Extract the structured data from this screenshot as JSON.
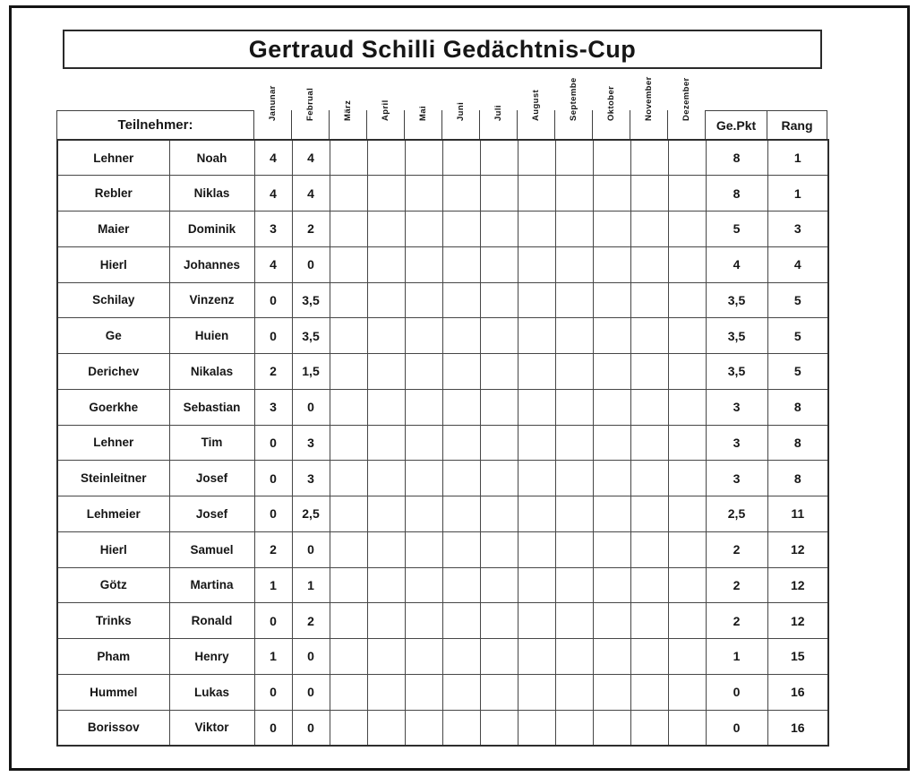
{
  "title": "Gertraud Schilli Gedächtnis-Cup",
  "header": {
    "teilnehmer_label": "Teilnehmer:",
    "months": [
      "Janunar",
      "Februal",
      "März",
      "April",
      "Mai",
      "Juni",
      "Juli",
      "August",
      "Septembe",
      "Oktober",
      "November",
      "Dezember"
    ],
    "gepkt_label": "Ge.Pkt",
    "rang_label": "Rang"
  },
  "rows": [
    {
      "nachname": "Lehner",
      "vorname": "Noah",
      "monate": [
        "4",
        "4",
        "",
        "",
        "",
        "",
        "",
        "",
        "",
        "",
        "",
        ""
      ],
      "gepkt": "8",
      "rang": "1"
    },
    {
      "nachname": "Rebler",
      "vorname": "Niklas",
      "monate": [
        "4",
        "4",
        "",
        "",
        "",
        "",
        "",
        "",
        "",
        "",
        "",
        ""
      ],
      "gepkt": "8",
      "rang": "1"
    },
    {
      "nachname": "Maier",
      "vorname": "Dominik",
      "monate": [
        "3",
        "2",
        "",
        "",
        "",
        "",
        "",
        "",
        "",
        "",
        "",
        ""
      ],
      "gepkt": "5",
      "rang": "3"
    },
    {
      "nachname": "Hierl",
      "vorname": "Johannes",
      "monate": [
        "4",
        "0",
        "",
        "",
        "",
        "",
        "",
        "",
        "",
        "",
        "",
        ""
      ],
      "gepkt": "4",
      "rang": "4"
    },
    {
      "nachname": "Schilay",
      "vorname": "Vinzenz",
      "monate": [
        "0",
        "3,5",
        "",
        "",
        "",
        "",
        "",
        "",
        "",
        "",
        "",
        ""
      ],
      "gepkt": "3,5",
      "rang": "5"
    },
    {
      "nachname": "Ge",
      "vorname": "Huien",
      "monate": [
        "0",
        "3,5",
        "",
        "",
        "",
        "",
        "",
        "",
        "",
        "",
        "",
        ""
      ],
      "gepkt": "3,5",
      "rang": "5"
    },
    {
      "nachname": "Derichev",
      "vorname": "Nikalas",
      "monate": [
        "2",
        "1,5",
        "",
        "",
        "",
        "",
        "",
        "",
        "",
        "",
        "",
        ""
      ],
      "gepkt": "3,5",
      "rang": "5"
    },
    {
      "nachname": "Goerkhe",
      "vorname": "Sebastian",
      "monate": [
        "3",
        "0",
        "",
        "",
        "",
        "",
        "",
        "",
        "",
        "",
        "",
        ""
      ],
      "gepkt": "3",
      "rang": "8"
    },
    {
      "nachname": "Lehner",
      "vorname": "Tim",
      "monate": [
        "0",
        "3",
        "",
        "",
        "",
        "",
        "",
        "",
        "",
        "",
        "",
        ""
      ],
      "gepkt": "3",
      "rang": "8"
    },
    {
      "nachname": "Steinleitner",
      "vorname": "Josef",
      "monate": [
        "0",
        "3",
        "",
        "",
        "",
        "",
        "",
        "",
        "",
        "",
        "",
        ""
      ],
      "gepkt": "3",
      "rang": "8"
    },
    {
      "nachname": "Lehmeier",
      "vorname": "Josef",
      "monate": [
        "0",
        "2,5",
        "",
        "",
        "",
        "",
        "",
        "",
        "",
        "",
        "",
        ""
      ],
      "gepkt": "2,5",
      "rang": "11"
    },
    {
      "nachname": "Hierl",
      "vorname": "Samuel",
      "monate": [
        "2",
        "0",
        "",
        "",
        "",
        "",
        "",
        "",
        "",
        "",
        "",
        ""
      ],
      "gepkt": "2",
      "rang": "12"
    },
    {
      "nachname": "Götz",
      "vorname": "Martina",
      "monate": [
        "1",
        "1",
        "",
        "",
        "",
        "",
        "",
        "",
        "",
        "",
        "",
        ""
      ],
      "gepkt": "2",
      "rang": "12"
    },
    {
      "nachname": "Trinks",
      "vorname": "Ronald",
      "monate": [
        "0",
        "2",
        "",
        "",
        "",
        "",
        "",
        "",
        "",
        "",
        "",
        ""
      ],
      "gepkt": "2",
      "rang": "12"
    },
    {
      "nachname": "Pham",
      "vorname": "Henry",
      "monate": [
        "1",
        "0",
        "",
        "",
        "",
        "",
        "",
        "",
        "",
        "",
        "",
        ""
      ],
      "gepkt": "1",
      "rang": "15"
    },
    {
      "nachname": "Hummel",
      "vorname": "Lukas",
      "monate": [
        "0",
        "0",
        "",
        "",
        "",
        "",
        "",
        "",
        "",
        "",
        "",
        ""
      ],
      "gepkt": "0",
      "rang": "16"
    },
    {
      "nachname": "Borissov",
      "vorname": "Viktor",
      "monate": [
        "0",
        "0",
        "",
        "",
        "",
        "",
        "",
        "",
        "",
        "",
        "",
        ""
      ],
      "gepkt": "0",
      "rang": "16"
    }
  ]
}
